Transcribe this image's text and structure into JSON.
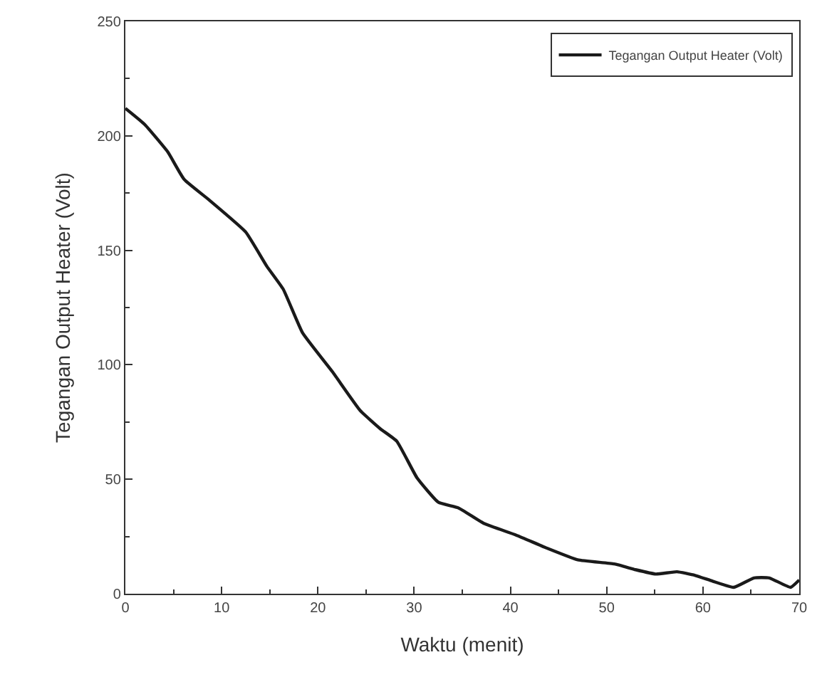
{
  "chart_data": {
    "type": "line",
    "xlabel": "Waktu (menit)",
    "ylabel": "Tegangan Output Heater (Volt)",
    "xlim": [
      0,
      70
    ],
    "xticks": [
      0,
      10,
      20,
      30,
      40,
      50,
      60,
      70
    ],
    "ylim": [
      0,
      250
    ],
    "yticks": [
      0,
      50,
      100,
      150,
      200,
      250
    ],
    "grid": false,
    "legend": "top right",
    "marker": "none",
    "line_style": "solid",
    "series": [
      {
        "name": "Tegangan Output Heater (Volt)",
        "color": "#1a1a1a",
        "x": [
          0,
          2,
          4.4,
          6.1,
          8.7,
          12.5,
          14.7,
          16.4,
          18.4,
          21.5,
          24.4,
          26.5,
          28.2,
          30.3,
          32.5,
          34.6,
          37.3,
          40.6,
          43.8,
          47,
          50.8,
          53,
          55.1,
          57.3,
          59.2,
          61,
          63.2,
          65.3,
          66.9,
          69.1,
          70
        ],
        "values": [
          212,
          205,
          193,
          181,
          172,
          158,
          143,
          133,
          114,
          97,
          80,
          72,
          66.6,
          50.6,
          40,
          37.5,
          30.6,
          25.6,
          19.9,
          14.8,
          13,
          10.5,
          8.6,
          9.6,
          8,
          5.5,
          2.8,
          6.9,
          6.9,
          2.8,
          6
        ]
      }
    ]
  }
}
